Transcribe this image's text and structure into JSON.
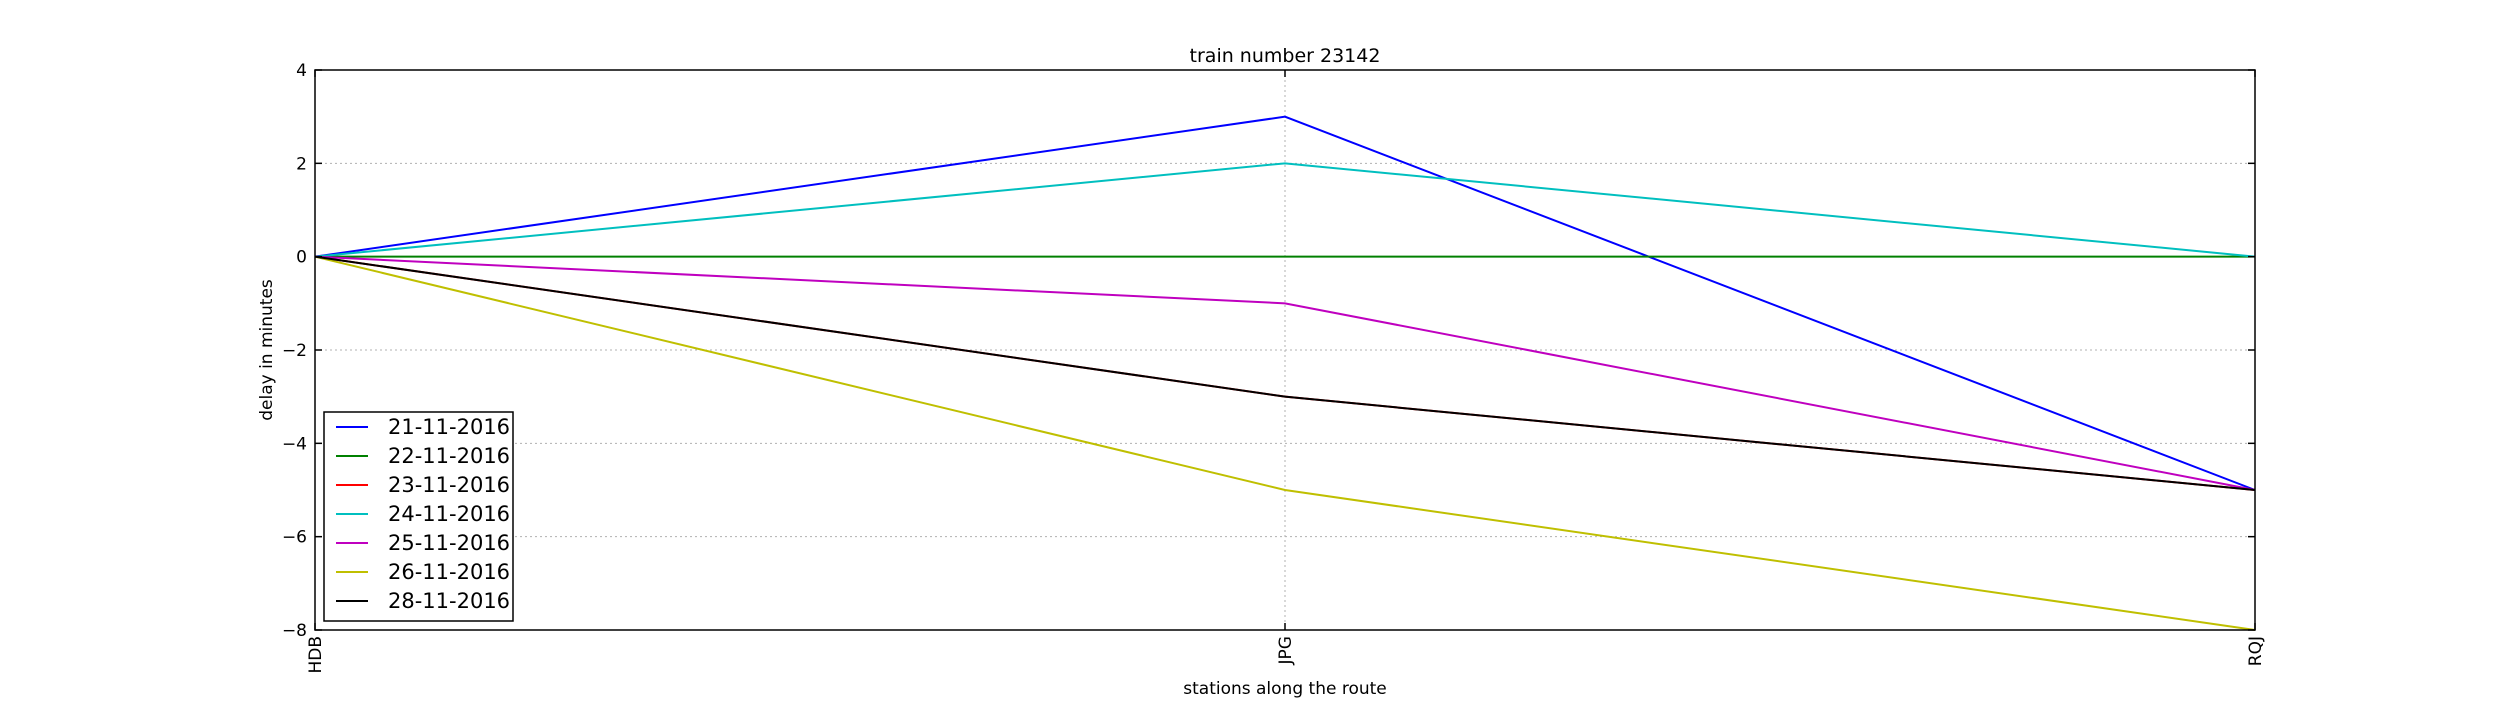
{
  "chart_data": {
    "type": "line",
    "title": "train number 23142",
    "xlabel": "stations along the route",
    "ylabel": "delay in minutes",
    "categories": [
      "HDB",
      "JPG",
      "RQJ"
    ],
    "ylim": [
      -8,
      4
    ],
    "yticks": [
      4,
      2,
      0,
      -2,
      -4,
      -6,
      -8
    ],
    "ytick_labels": [
      "4",
      "2",
      "0",
      "−2",
      "−4",
      "−6",
      "−8"
    ],
    "grid": true,
    "legend_position": "lower-left",
    "series": [
      {
        "name": "21-11-2016",
        "values": [
          0,
          3,
          -5
        ],
        "color": "#0000ff"
      },
      {
        "name": "22-11-2016",
        "values": [
          0,
          0,
          0
        ],
        "color": "#008000"
      },
      {
        "name": "23-11-2016",
        "values": [
          0,
          -3,
          -5
        ],
        "color": "#ff0000"
      },
      {
        "name": "24-11-2016",
        "values": [
          0,
          2,
          0
        ],
        "color": "#00bfbf"
      },
      {
        "name": "25-11-2016",
        "values": [
          0,
          -1,
          -5
        ],
        "color": "#bf00bf"
      },
      {
        "name": "26-11-2016",
        "values": [
          0,
          -5,
          -8
        ],
        "color": "#bfbf00"
      },
      {
        "name": "28-11-2016",
        "values": [
          0,
          -3,
          -5
        ],
        "color": "#000000"
      }
    ]
  }
}
